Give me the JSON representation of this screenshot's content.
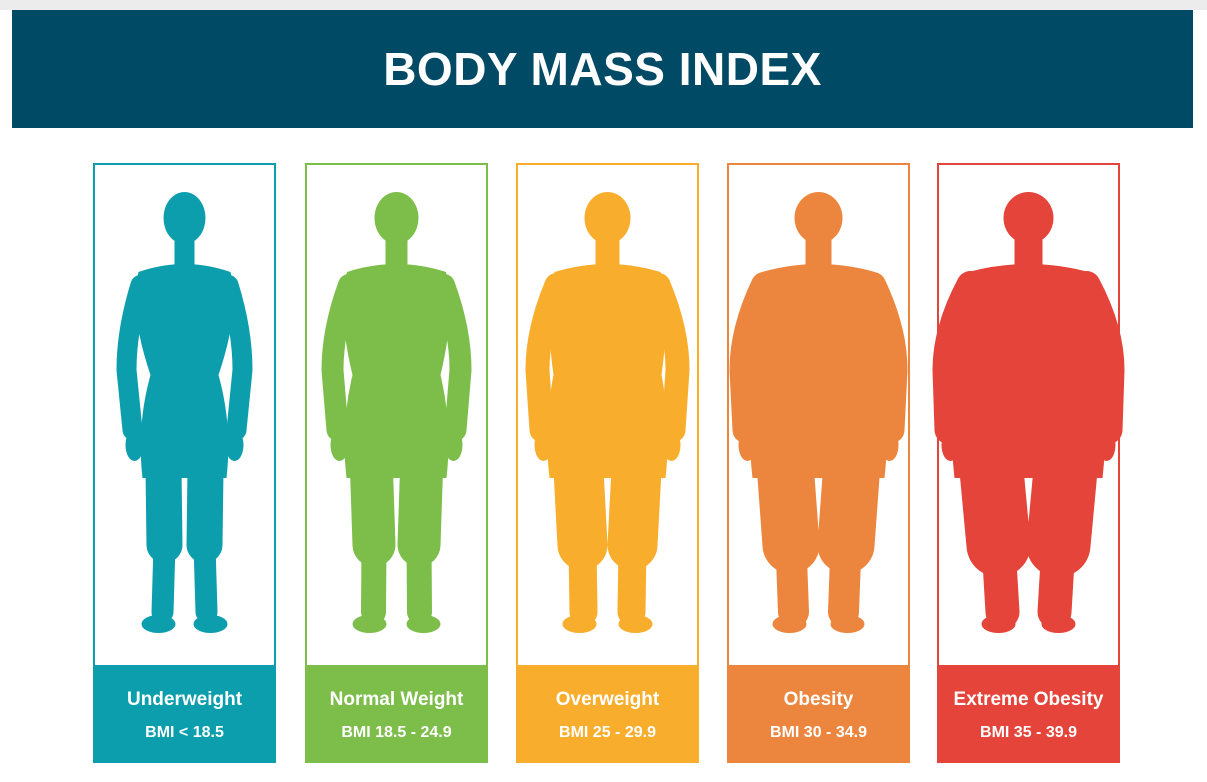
{
  "header": {
    "title": "BODY MASS INDEX"
  },
  "categories": [
    {
      "label": "Underweight",
      "range": "BMI < 18.5",
      "color": "#0d9eae"
    },
    {
      "label": "Normal Weight",
      "range": "BMI 18.5 - 24.9",
      "color": "#7dbe4b"
    },
    {
      "label": "Overweight",
      "range": "BMI 25 - 29.9",
      "color": "#f8ae2c"
    },
    {
      "label": "Obesity",
      "range": "BMI 30 - 34.9",
      "color": "#ec863e"
    },
    {
      "label": "Extreme Obesity",
      "range": "BMI 35 - 39.9",
      "color": "#e4443a"
    }
  ]
}
